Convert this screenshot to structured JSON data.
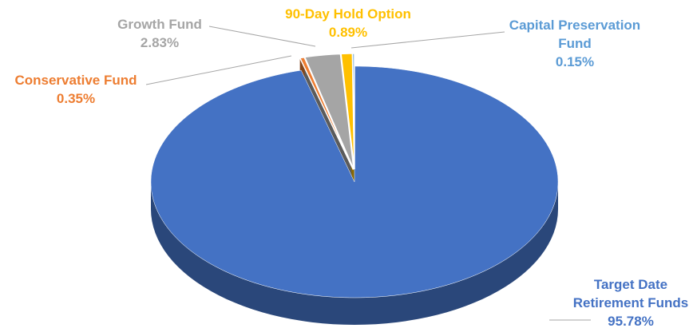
{
  "chart_data": {
    "type": "pie",
    "style": "3d-exploded",
    "title": "",
    "slices": [
      {
        "name": "Target Date Retirement Funds",
        "label_lines": [
          "Target Date",
          "Retirement Funds"
        ],
        "value": 95.78,
        "value_label": "95.78%",
        "color": "#4472C4",
        "label_color": "#4472C4"
      },
      {
        "name": "Conservative Fund",
        "label_lines": [
          "Conservative Fund"
        ],
        "value": 0.35,
        "value_label": "0.35%",
        "color": "#ED7D31",
        "label_color": "#ED7D31"
      },
      {
        "name": "Growth Fund",
        "label_lines": [
          "Growth Fund"
        ],
        "value": 2.83,
        "value_label": "2.83%",
        "color": "#A5A5A5",
        "label_color": "#A5A5A5"
      },
      {
        "name": "90-Day Hold Option",
        "label_lines": [
          "90-Day Hold Option"
        ],
        "value": 0.89,
        "value_label": "0.89%",
        "color": "#FFC000",
        "label_color": "#FFC000"
      },
      {
        "name": "Capital Preservation Fund",
        "label_lines": [
          "Capital Preservation",
          "Fund"
        ],
        "value": 0.15,
        "value_label": "0.15%",
        "color": "#5B9BD5",
        "label_color": "#5B9BD5"
      }
    ],
    "legend": "none",
    "leader_lines": true
  }
}
